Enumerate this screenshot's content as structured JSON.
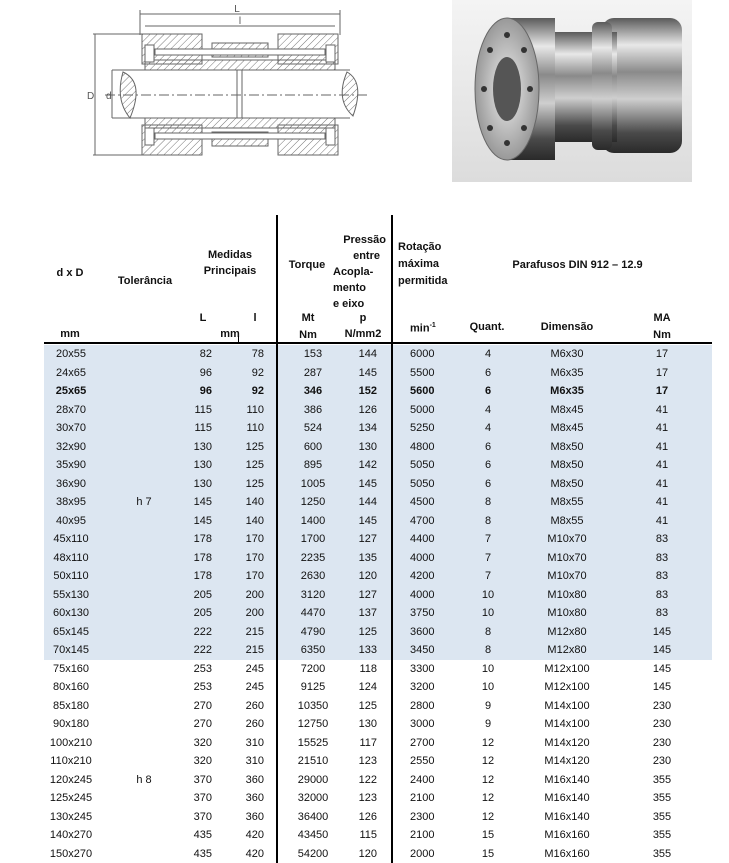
{
  "figures": {
    "drawing_labels": {
      "L": "L",
      "l": "l",
      "D": "D",
      "d": "d"
    },
    "photo_icon": "coupling-photo"
  },
  "header": {
    "dxd": "d x D",
    "tolerancia": "Tolerância",
    "medidas": [
      "Medidas",
      "Principais"
    ],
    "torque": "Torque",
    "pressao": [
      "Pressão",
      "entre",
      "Acopla-",
      "mento",
      "e eixo"
    ],
    "rotacao": [
      "Rotação",
      "máxima",
      "permitida"
    ],
    "parafusos": "Parafusos DIN 912 – 12.9",
    "units": {
      "dxd_mm": "mm",
      "L": "L",
      "l": "l",
      "medidas_mm": "mm",
      "Mt": "Mt",
      "Mt_unit": "Nm",
      "p": "p",
      "p_unit": "N/mm2",
      "min": "min",
      "min_exp": "-1",
      "quant": "Quant.",
      "dimensao": "Dimensão",
      "MA": "MA",
      "MA_unit": "Nm"
    }
  },
  "colors": {
    "highlight_rows": "#dce6f1"
  },
  "tolerance_groups": [
    {
      "label": "h 7",
      "row_index": 8
    },
    {
      "label": "h 8",
      "row_index": 23
    }
  ],
  "columns": [
    "dxD",
    "L",
    "l",
    "Mt",
    "p",
    "rpm",
    "quant",
    "dimensao",
    "MA"
  ],
  "rows": [
    [
      "20x55",
      "82",
      "78",
      "153",
      "144",
      "6000",
      "4",
      "M6x30",
      "17"
    ],
    [
      "24x65",
      "96",
      "92",
      "287",
      "145",
      "5500",
      "6",
      "M6x35",
      "17"
    ],
    [
      "25x65",
      "96",
      "92",
      "346",
      "152",
      "5600",
      "6",
      "M6x35",
      "17"
    ],
    [
      "28x70",
      "115",
      "110",
      "386",
      "126",
      "5000",
      "4",
      "M8x45",
      "41"
    ],
    [
      "30x70",
      "115",
      "110",
      "524",
      "134",
      "5250",
      "4",
      "M8x45",
      "41"
    ],
    [
      "32x90",
      "130",
      "125",
      "600",
      "130",
      "4800",
      "6",
      "M8x50",
      "41"
    ],
    [
      "35x90",
      "130",
      "125",
      "895",
      "142",
      "5050",
      "6",
      "M8x50",
      "41"
    ],
    [
      "36x90",
      "130",
      "125",
      "1005",
      "145",
      "5050",
      "6",
      "M8x50",
      "41"
    ],
    [
      "38x95",
      "145",
      "140",
      "1250",
      "144",
      "4500",
      "8",
      "M8x55",
      "41"
    ],
    [
      "40x95",
      "145",
      "140",
      "1400",
      "145",
      "4700",
      "8",
      "M8x55",
      "41"
    ],
    [
      "45x110",
      "178",
      "170",
      "1700",
      "127",
      "4400",
      "7",
      "M10x70",
      "83"
    ],
    [
      "48x110",
      "178",
      "170",
      "2235",
      "135",
      "4000",
      "7",
      "M10x70",
      "83"
    ],
    [
      "50x110",
      "178",
      "170",
      "2630",
      "120",
      "4200",
      "7",
      "M10x70",
      "83"
    ],
    [
      "55x130",
      "205",
      "200",
      "3120",
      "127",
      "4000",
      "10",
      "M10x80",
      "83"
    ],
    [
      "60x130",
      "205",
      "200",
      "4470",
      "137",
      "3750",
      "10",
      "M10x80",
      "83"
    ],
    [
      "65x145",
      "222",
      "215",
      "4790",
      "125",
      "3600",
      "8",
      "M12x80",
      "145"
    ],
    [
      "70x145",
      "222",
      "215",
      "6350",
      "133",
      "3450",
      "8",
      "M12x80",
      "145"
    ],
    [
      "75x160",
      "253",
      "245",
      "7200",
      "118",
      "3300",
      "10",
      "M12x100",
      "145"
    ],
    [
      "80x160",
      "253",
      "245",
      "9125",
      "124",
      "3200",
      "10",
      "M12x100",
      "145"
    ],
    [
      "85x180",
      "270",
      "260",
      "10350",
      "125",
      "2800",
      "9",
      "M14x100",
      "230"
    ],
    [
      "90x180",
      "270",
      "260",
      "12750",
      "130",
      "3000",
      "9",
      "M14x100",
      "230"
    ],
    [
      "100x210",
      "320",
      "310",
      "15525",
      "117",
      "2700",
      "12",
      "M14x120",
      "230"
    ],
    [
      "110x210",
      "320",
      "310",
      "21510",
      "123",
      "2550",
      "12",
      "M14x120",
      "230"
    ],
    [
      "120x245",
      "370",
      "360",
      "29000",
      "122",
      "2400",
      "12",
      "M16x140",
      "355"
    ],
    [
      "125x245",
      "370",
      "360",
      "32000",
      "123",
      "2100",
      "12",
      "M16x140",
      "355"
    ],
    [
      "130x245",
      "370",
      "360",
      "36400",
      "126",
      "2300",
      "12",
      "M16x140",
      "355"
    ],
    [
      "140x270",
      "435",
      "420",
      "43450",
      "115",
      "2100",
      "15",
      "M16x160",
      "355"
    ],
    [
      "150x270",
      "435",
      "420",
      "54200",
      "120",
      "2000",
      "15",
      "M16x160",
      "355"
    ]
  ],
  "highlighted_rows_count": 17,
  "bold_row_index": 2
}
